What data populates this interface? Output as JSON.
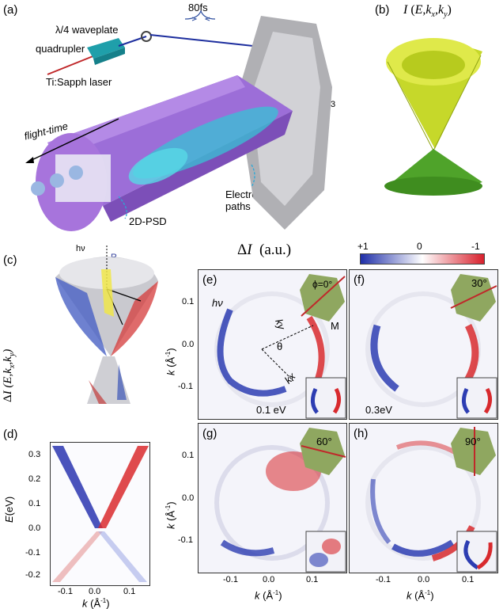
{
  "panels": {
    "a": {
      "label": "(a)",
      "waveplate": "λ/4 waveplate",
      "quadrupler": "quadrupler",
      "laser": "Ti:Sapph laser",
      "pulse": "80fs",
      "sample": "Bi2Se3",
      "flight": "flight-time",
      "psd": "2D-PSD",
      "paths": "Electron paths"
    },
    "b": {
      "label": "(b)",
      "title": "I (E,kx,ky)"
    },
    "c": {
      "label": "(c)",
      "title": "ΔI (E,kx,ky)",
      "hv": "hν",
      "R": "R",
      "L": "L",
      "E": "E",
      "ky": "ky",
      "kx": "kx"
    },
    "colorbar": {
      "title": "ΔI (a.u.)",
      "ticks": [
        "+1",
        "0",
        "-1"
      ],
      "colors": [
        "#1f2fa8",
        "#ffffff",
        "#d8202c"
      ]
    },
    "d": {
      "label": "(d)",
      "ylabel": "E(eV)",
      "xlabel": "k (Å-1)",
      "yticks": [
        "0.3",
        "0.2",
        "0.1",
        "0.0",
        "-0.1",
        "-0.2"
      ],
      "xticks": [
        "-0.1",
        "0.0",
        "0.1"
      ]
    },
    "e": {
      "label": "(e)",
      "hv": "hν",
      "ky": "ky",
      "kx": "kx",
      "theta": "θ",
      "angle": "ϕ=0°",
      "energy": "0.1 eV",
      "M": "M"
    },
    "f": {
      "label": "(f)",
      "angle": "30°",
      "energy": "0.3eV"
    },
    "g": {
      "label": "(g)",
      "angle": "60°"
    },
    "h": {
      "label": "(h)",
      "angle": "90°"
    },
    "axes": {
      "ylabel": "k (Å-1)",
      "xlabel": "k (Å-1)",
      "ticks_y": [
        "0.1",
        "0.0",
        "-0.1"
      ],
      "ticks_x": [
        "-0.1",
        "0.0",
        "0.1"
      ]
    }
  }
}
